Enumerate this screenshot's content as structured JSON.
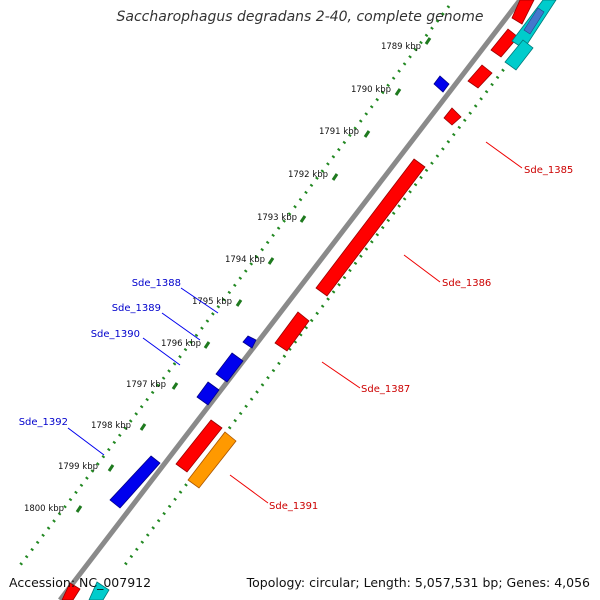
{
  "title": "Saccharophagus degradans 2-40, complete genome",
  "footer": {
    "accession": "Accession: NC_007912",
    "topology": "Topology: circular; Length: 5,057,531 bp; Genes: 4,056"
  },
  "kbp_labels": [
    "1789 kbp",
    "1790 kbp",
    "1791 kbp",
    "1792 kbp",
    "1793 kbp",
    "1794 kbp",
    "1795 kbp",
    "1796 kbp",
    "1797 kbp",
    "1798 kbp",
    "1799 kbp",
    "1800 kbp"
  ],
  "gene_labels_minus": [
    "Sde_1388",
    "Sde_1389",
    "Sde_1390",
    "Sde_1392"
  ],
  "gene_labels_plus": [
    "Sde_1385",
    "Sde_1386",
    "Sde_1387",
    "Sde_1391"
  ],
  "colors": {
    "minus_strand": "#0000ee",
    "plus_strand": "#ff0000",
    "orange_gene": "#ff9900",
    "cyan_gene": "#00cccc",
    "backbone": "#888888",
    "ruler": "#228822",
    "minus_label": "#0000cc",
    "plus_label": "#cc0000"
  }
}
